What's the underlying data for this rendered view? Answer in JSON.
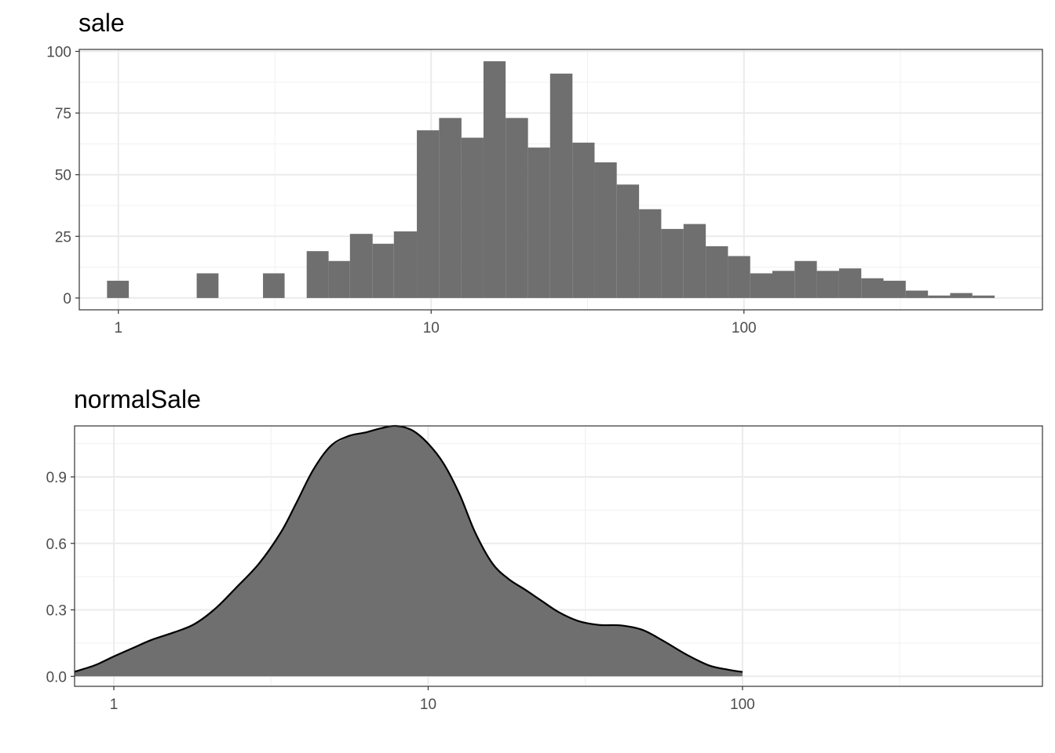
{
  "chart_data": [
    {
      "type": "bar",
      "title": "sale",
      "xscale": "log10",
      "xlim": [
        0.75,
        900
      ],
      "ylim": [
        -4.8,
        100.8
      ],
      "xticks": [
        1,
        10,
        100
      ],
      "xtick_labels": [
        "1",
        "10",
        "100"
      ],
      "yticks": [
        0,
        25,
        50,
        75,
        100
      ],
      "ytick_labels": [
        "0",
        "25",
        "50",
        "75",
        "100"
      ],
      "grid": true,
      "bar_color": "#6f6f6f",
      "bins": [
        {
          "x0": 0.92,
          "x1": 1.08,
          "count": 7
        },
        {
          "x0": 1.78,
          "x1": 2.09,
          "count": 10
        },
        {
          "x0": 2.9,
          "x1": 3.4,
          "count": 10
        },
        {
          "x0": 4.0,
          "x1": 4.7,
          "count": 19
        },
        {
          "x0": 4.7,
          "x1": 5.5,
          "count": 15
        },
        {
          "x0": 5.5,
          "x1": 6.5,
          "count": 26
        },
        {
          "x0": 6.5,
          "x1": 7.6,
          "count": 22
        },
        {
          "x0": 7.6,
          "x1": 9.0,
          "count": 27
        },
        {
          "x0": 9.0,
          "x1": 10.6,
          "count": 68
        },
        {
          "x0": 10.6,
          "x1": 12.5,
          "count": 73
        },
        {
          "x0": 12.5,
          "x1": 14.7,
          "count": 65
        },
        {
          "x0": 14.7,
          "x1": 17.3,
          "count": 96
        },
        {
          "x0": 17.3,
          "x1": 20.4,
          "count": 73
        },
        {
          "x0": 20.4,
          "x1": 24.0,
          "count": 61
        },
        {
          "x0": 24.0,
          "x1": 28.3,
          "count": 91
        },
        {
          "x0": 28.3,
          "x1": 33.3,
          "count": 63
        },
        {
          "x0": 33.3,
          "x1": 39.2,
          "count": 55
        },
        {
          "x0": 39.2,
          "x1": 46.2,
          "count": 46
        },
        {
          "x0": 46.2,
          "x1": 54.4,
          "count": 36
        },
        {
          "x0": 54.4,
          "x1": 64.1,
          "count": 28
        },
        {
          "x0": 64.1,
          "x1": 75.5,
          "count": 30
        },
        {
          "x0": 75.5,
          "x1": 88.9,
          "count": 21
        },
        {
          "x0": 88.9,
          "x1": 104.7,
          "count": 17
        },
        {
          "x0": 104.7,
          "x1": 123.3,
          "count": 10
        },
        {
          "x0": 123.3,
          "x1": 145.2,
          "count": 11
        },
        {
          "x0": 145.2,
          "x1": 171.0,
          "count": 15
        },
        {
          "x0": 171.0,
          "x1": 201.4,
          "count": 11
        },
        {
          "x0": 201.4,
          "x1": 237.2,
          "count": 12
        },
        {
          "x0": 237.2,
          "x1": 279.3,
          "count": 8
        },
        {
          "x0": 279.3,
          "x1": 329.0,
          "count": 7
        },
        {
          "x0": 329.0,
          "x1": 387.5,
          "count": 3
        },
        {
          "x0": 387.5,
          "x1": 456.3,
          "count": 1
        },
        {
          "x0": 456.3,
          "x1": 537.4,
          "count": 2
        },
        {
          "x0": 537.4,
          "x1": 632.9,
          "count": 1
        }
      ]
    },
    {
      "type": "area",
      "title": "normalSale",
      "xscale": "log10",
      "xlim": [
        0.75,
        900
      ],
      "ylim": [
        -0.045,
        1.13
      ],
      "xticks": [
        1,
        10,
        100
      ],
      "xtick_labels": [
        "1",
        "10",
        "100"
      ],
      "yticks": [
        0.0,
        0.3,
        0.6,
        0.9
      ],
      "ytick_labels": [
        "0.0",
        "0.3",
        "0.6",
        "0.9"
      ],
      "grid": true,
      "fill_color": "#6f6f6f",
      "line_color": "#000000",
      "x": [
        0.75,
        0.87,
        1.0,
        1.15,
        1.32,
        1.55,
        1.8,
        2.1,
        2.45,
        2.9,
        3.4,
        3.8,
        4.3,
        4.9,
        5.6,
        6.3,
        7.1,
        7.9,
        8.9,
        10.0,
        11.2,
        12.6,
        14.1,
        16.0,
        18.0,
        20.4,
        23.0,
        26.0,
        30.0,
        35.0,
        41.0,
        48.0,
        56.0,
        66.0,
        78.0,
        90.0,
        100.0
      ],
      "y": [
        0.021,
        0.05,
        0.09,
        0.128,
        0.165,
        0.198,
        0.235,
        0.305,
        0.4,
        0.51,
        0.65,
        0.78,
        0.93,
        1.04,
        1.085,
        1.1,
        1.12,
        1.13,
        1.11,
        1.05,
        0.96,
        0.82,
        0.65,
        0.51,
        0.44,
        0.39,
        0.34,
        0.29,
        0.25,
        0.232,
        0.23,
        0.21,
        0.16,
        0.1,
        0.05,
        0.03,
        0.02
      ]
    }
  ]
}
